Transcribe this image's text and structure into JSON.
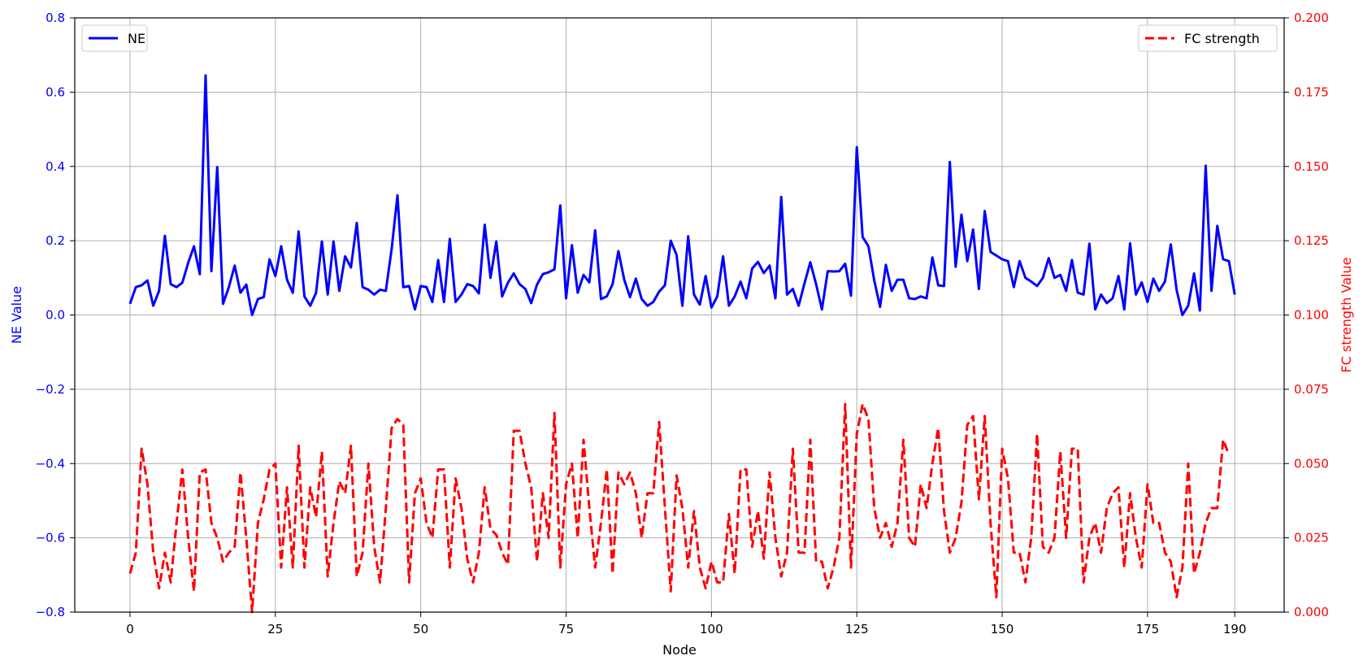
{
  "chart_data": {
    "type": "line",
    "xlabel": "Node",
    "ylabel_left": "NE Value",
    "ylabel_right": "FC strength Value",
    "xlim": [
      -9.5,
      198.5
    ],
    "ylim_left": [
      -0.8,
      0.8
    ],
    "ylim_right": [
      0.0,
      0.2
    ],
    "x_ticks": [
      0,
      25,
      50,
      75,
      100,
      125,
      150,
      175,
      190
    ],
    "left_ticks": [
      -0.8,
      -0.6,
      -0.4,
      -0.2,
      0.0,
      0.2,
      0.4,
      0.6,
      0.8
    ],
    "left_tick_labels": [
      "−0.8",
      "−0.6",
      "−0.4",
      "−0.2",
      "0.0",
      "0.2",
      "0.4",
      "0.6",
      "0.8"
    ],
    "right_ticks": [
      0.0,
      0.025,
      0.05,
      0.075,
      0.1,
      0.125,
      0.15,
      0.175,
      0.2
    ],
    "right_tick_labels": [
      "0.000",
      "0.025",
      "0.050",
      "0.075",
      "0.100",
      "0.125",
      "0.150",
      "0.175",
      "0.200"
    ],
    "grid": true,
    "colors": {
      "ne": "#0000ff",
      "fc": "#ff0000",
      "grid": "#b0b0b0",
      "axis": "#000000"
    },
    "series": [
      {
        "name": "NE",
        "axis": "left",
        "style": "solid",
        "legend_position": "top-left",
        "values": [
          0.03,
          0.075,
          0.08,
          0.093,
          0.025,
          0.065,
          0.213,
          0.083,
          0.075,
          0.087,
          0.14,
          0.185,
          0.11,
          0.645,
          0.118,
          0.398,
          0.03,
          0.075,
          0.133,
          0.06,
          0.082,
          0.0,
          0.043,
          0.048,
          0.15,
          0.105,
          0.185,
          0.095,
          0.06,
          0.225,
          0.05,
          0.025,
          0.06,
          0.198,
          0.055,
          0.198,
          0.065,
          0.158,
          0.128,
          0.248,
          0.075,
          0.068,
          0.055,
          0.068,
          0.065,
          0.178,
          0.322,
          0.075,
          0.078,
          0.015,
          0.078,
          0.075,
          0.035,
          0.148,
          0.035,
          0.205,
          0.035,
          0.055,
          0.083,
          0.078,
          0.058,
          0.243,
          0.1,
          0.198,
          0.05,
          0.087,
          0.112,
          0.083,
          0.07,
          0.032,
          0.082,
          0.11,
          0.115,
          0.123,
          0.295,
          0.045,
          0.188,
          0.06,
          0.108,
          0.088,
          0.228,
          0.043,
          0.05,
          0.083,
          0.172,
          0.095,
          0.048,
          0.098,
          0.043,
          0.025,
          0.035,
          0.063,
          0.08,
          0.2,
          0.162,
          0.025,
          0.212,
          0.055,
          0.028,
          0.105,
          0.02,
          0.05,
          0.158,
          0.025,
          0.05,
          0.09,
          0.045,
          0.125,
          0.143,
          0.113,
          0.133,
          0.045,
          0.318,
          0.055,
          0.07,
          0.025,
          0.085,
          0.142,
          0.083,
          0.015,
          0.118,
          0.117,
          0.118,
          0.138,
          0.052,
          0.452,
          0.21,
          0.185,
          0.093,
          0.022,
          0.135,
          0.065,
          0.095,
          0.095,
          0.045,
          0.043,
          0.05,
          0.045,
          0.155,
          0.08,
          0.078,
          0.412,
          0.13,
          0.27,
          0.145,
          0.23,
          0.07,
          0.28,
          0.17,
          0.16,
          0.15,
          0.145,
          0.075,
          0.145,
          0.1,
          0.09,
          0.078,
          0.1,
          0.153,
          0.1,
          0.108,
          0.065,
          0.148,
          0.06,
          0.055,
          0.192,
          0.015,
          0.055,
          0.032,
          0.045,
          0.105,
          0.015,
          0.193,
          0.055,
          0.088,
          0.035,
          0.098,
          0.065,
          0.09,
          0.19,
          0.068,
          0.0,
          0.025,
          0.112,
          0.012,
          0.402,
          0.065,
          0.24,
          0.15,
          0.145,
          0.055
        ]
      },
      {
        "name": "FC strength",
        "axis": "right",
        "style": "dashed",
        "legend_position": "top-right",
        "values": [
          0.013,
          0.02,
          0.055,
          0.043,
          0.02,
          0.008,
          0.02,
          0.01,
          0.03,
          0.048,
          0.025,
          0.007,
          0.047,
          0.048,
          0.03,
          0.025,
          0.017,
          0.02,
          0.022,
          0.047,
          0.025,
          0.0,
          0.03,
          0.038,
          0.048,
          0.05,
          0.015,
          0.042,
          0.015,
          0.056,
          0.015,
          0.042,
          0.032,
          0.054,
          0.012,
          0.03,
          0.044,
          0.04,
          0.056,
          0.012,
          0.02,
          0.05,
          0.022,
          0.01,
          0.035,
          0.062,
          0.065,
          0.063,
          0.01,
          0.04,
          0.045,
          0.03,
          0.025,
          0.048,
          0.048,
          0.015,
          0.045,
          0.035,
          0.018,
          0.01,
          0.02,
          0.042,
          0.028,
          0.026,
          0.02,
          0.016,
          0.061,
          0.061,
          0.05,
          0.042,
          0.017,
          0.04,
          0.025,
          0.067,
          0.015,
          0.043,
          0.05,
          0.025,
          0.058,
          0.035,
          0.015,
          0.03,
          0.048,
          0.013,
          0.047,
          0.043,
          0.047,
          0.04,
          0.025,
          0.04,
          0.04,
          0.064,
          0.035,
          0.007,
          0.046,
          0.035,
          0.015,
          0.034,
          0.015,
          0.008,
          0.017,
          0.01,
          0.01,
          0.033,
          0.013,
          0.048,
          0.048,
          0.022,
          0.034,
          0.018,
          0.047,
          0.025,
          0.012,
          0.02,
          0.055,
          0.02,
          0.02,
          0.058,
          0.017,
          0.017,
          0.008,
          0.015,
          0.025,
          0.07,
          0.015,
          0.06,
          0.07,
          0.065,
          0.035,
          0.025,
          0.03,
          0.022,
          0.03,
          0.058,
          0.025,
          0.022,
          0.043,
          0.035,
          0.05,
          0.062,
          0.034,
          0.02,
          0.025,
          0.037,
          0.063,
          0.066,
          0.038,
          0.066,
          0.03,
          0.005,
          0.055,
          0.045,
          0.02,
          0.02,
          0.01,
          0.025,
          0.06,
          0.022,
          0.02,
          0.025,
          0.054,
          0.025,
          0.055,
          0.055,
          0.01,
          0.025,
          0.03,
          0.02,
          0.035,
          0.04,
          0.042,
          0.015,
          0.04,
          0.025,
          0.015,
          0.043,
          0.03,
          0.03,
          0.02,
          0.017,
          0.005,
          0.015,
          0.05,
          0.013,
          0.02,
          0.03,
          0.035,
          0.035,
          0.058,
          0.053
        ]
      }
    ]
  }
}
